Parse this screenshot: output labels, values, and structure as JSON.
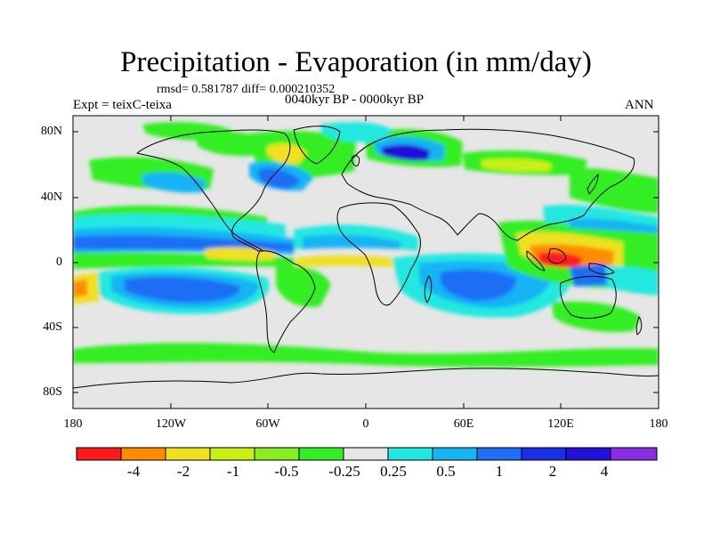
{
  "figure": {
    "title": "Precipitation - Evaporation (in mm/day)",
    "stats": "rmsd= 0.581787 diff= 0.000210352",
    "period": "0040kyr BP - 0000kyr BP",
    "experiment": "Expt = teixC-teixa",
    "season": "ANN"
  },
  "axes": {
    "lat_labels": [
      "80N",
      "40N",
      "0",
      "40S",
      "80S"
    ],
    "lon_labels": [
      "180",
      "120W",
      "60W",
      "0",
      "60E",
      "120E",
      "180"
    ]
  },
  "colorbar": {
    "colors": [
      "#ff1a1a",
      "#ff8c00",
      "#f0e020",
      "#c8f014",
      "#88ee22",
      "#33ee22",
      "#e6e6e6",
      "#22e8e0",
      "#14b4f5",
      "#1f6ef5",
      "#1a2ee6",
      "#2010d8",
      "#8a2ee6"
    ],
    "labels": [
      "-4",
      "-2",
      "-1",
      "-0.5",
      "-0.25",
      "0.25",
      "0.5",
      "1",
      "2",
      "4"
    ]
  },
  "map": {
    "background_color": "#e6e6e6",
    "coastline_color": "#000000"
  }
}
